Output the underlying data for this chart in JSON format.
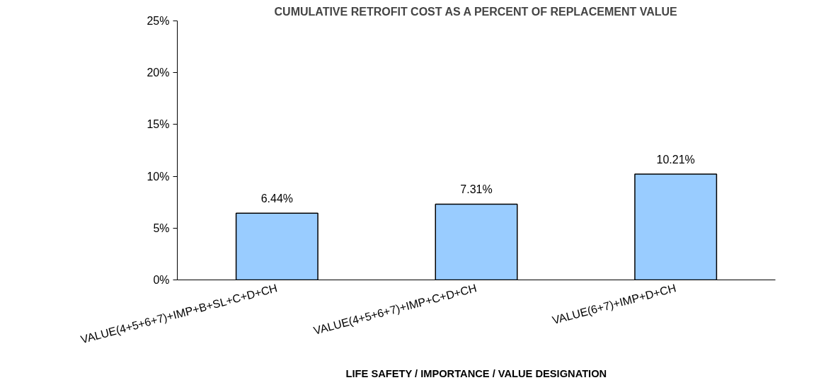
{
  "chart_data": {
    "type": "bar",
    "title": "CUMULATIVE RETROFIT COST AS A PERCENT OF REPLACEMENT VALUE",
    "xlabel": "LIFE SAFETY / IMPORTANCE / VALUE DESIGNATION",
    "categories": [
      "VALUE(4+5+6+7)+IMP+B+SL+C+D+CH",
      "VALUE(4+5+6+7)+IMP+C+D+CH",
      "VALUE(6+7)+IMP+D+CH"
    ],
    "values": [
      6.44,
      7.31,
      10.21
    ],
    "color": "#99ccff",
    "value_labels": [
      "6.44%",
      "7.31%",
      "10.21%"
    ],
    "ylim": [
      0,
      25
    ],
    "yticks": [
      {
        "value": 0,
        "label": "0%"
      },
      {
        "value": 5,
        "label": "5%"
      },
      {
        "value": 10,
        "label": "10%"
      },
      {
        "value": 15,
        "label": "15%"
      },
      {
        "value": 20,
        "label": "20%"
      },
      {
        "value": 25,
        "label": "25%"
      }
    ],
    "grid": false
  }
}
